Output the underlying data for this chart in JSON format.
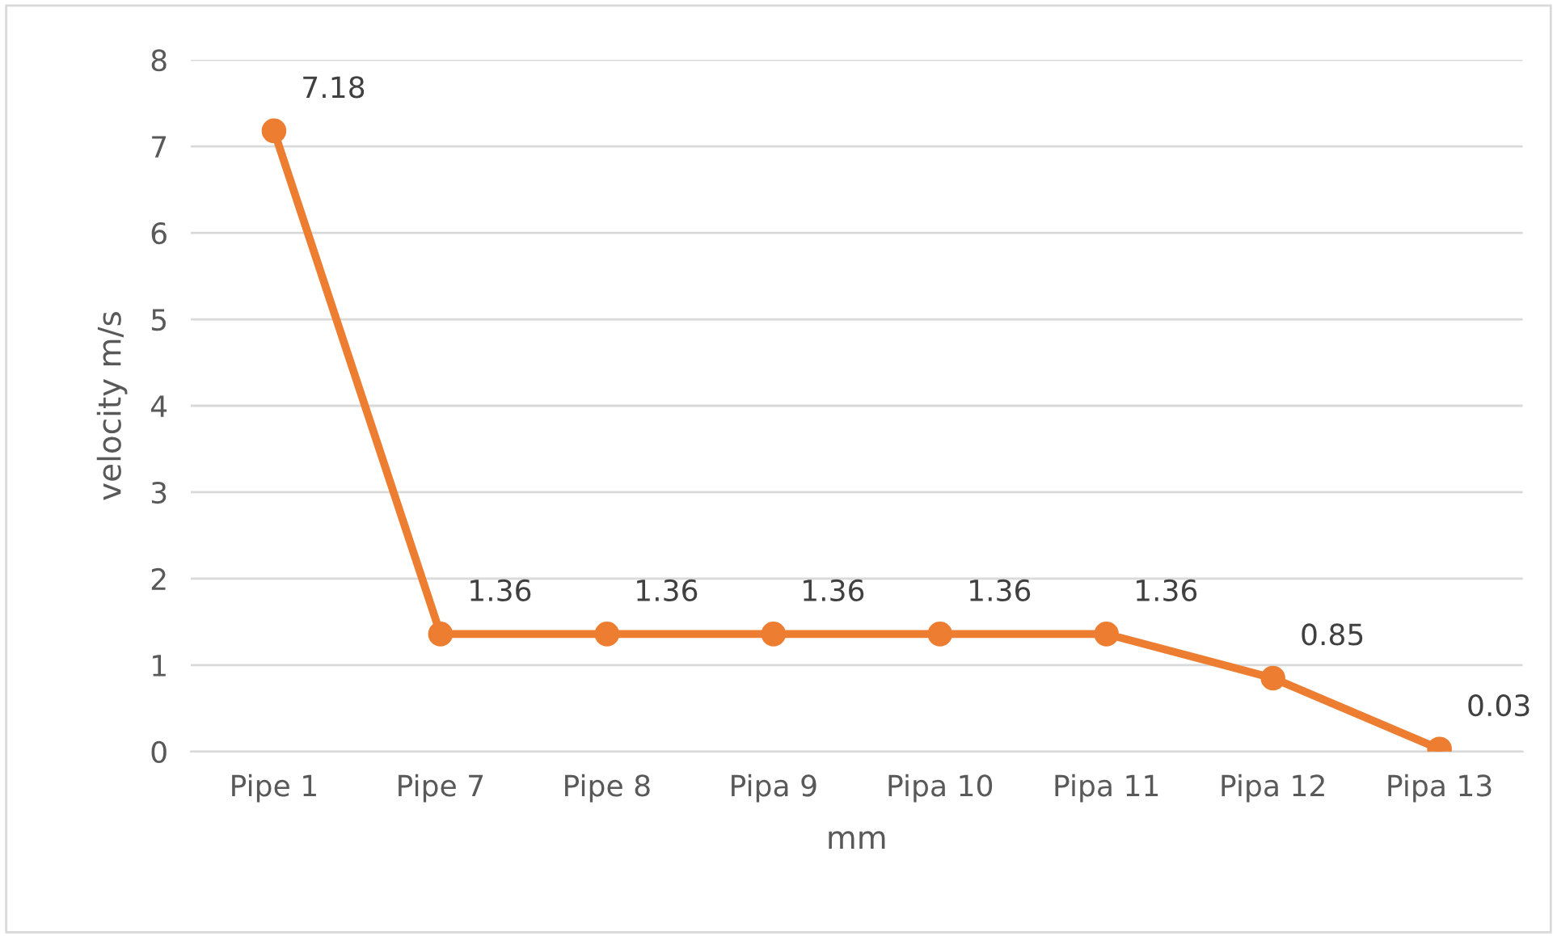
{
  "chart_data": {
    "type": "line",
    "xlabel": "mm",
    "ylabel": "velocity m/s",
    "categories": [
      "Pipe 1",
      "Pipe 7",
      "Pipe 8",
      "Pipa 9",
      "Pipa 10",
      "Pipa 11",
      "Pipa 12",
      "Pipa 13"
    ],
    "series": [
      {
        "color": "#ed7d31",
        "values": [
          7.18,
          1.36,
          1.36,
          1.36,
          1.36,
          1.36,
          0.85,
          0.03
        ]
      }
    ],
    "ylim": [
      0,
      8
    ],
    "yticks": [
      0,
      1,
      2,
      3,
      4,
      5,
      6,
      7,
      8
    ],
    "grid": "y",
    "marker": "circle",
    "line_style": "solid",
    "data_labels": true
  }
}
